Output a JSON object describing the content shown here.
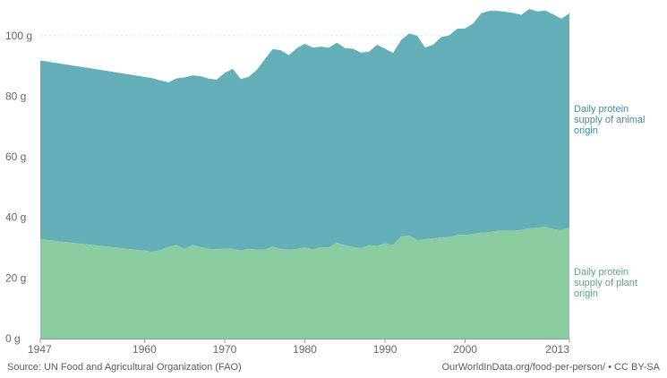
{
  "chart_data": {
    "type": "area",
    "stacked": true,
    "x": [
      1947,
      1961,
      1962,
      1963,
      1964,
      1965,
      1966,
      1967,
      1968,
      1969,
      1970,
      1971,
      1972,
      1973,
      1974,
      1975,
      1976,
      1977,
      1978,
      1979,
      1980,
      1981,
      1982,
      1983,
      1984,
      1985,
      1986,
      1987,
      1988,
      1989,
      1990,
      1991,
      1992,
      1993,
      1994,
      1995,
      1996,
      1997,
      1998,
      1999,
      2000,
      2001,
      2002,
      2003,
      2004,
      2005,
      2006,
      2007,
      2008,
      2009,
      2010,
      2011,
      2012,
      2013
    ],
    "series": [
      {
        "name": "Daily protein supply of plant origin",
        "color": "#8bcba0",
        "values": [
          32.8,
          28.7,
          29.2,
          30.2,
          30.9,
          29.6,
          30.9,
          30.2,
          29.6,
          29.5,
          29.7,
          29.6,
          29.1,
          29.6,
          29.4,
          29.4,
          30.4,
          29.6,
          29.3,
          29.6,
          30.1,
          29.5,
          30.2,
          30.1,
          31.6,
          30.8,
          30.2,
          29.9,
          30.8,
          30.6,
          31.4,
          30.9,
          33.7,
          34.1,
          32.5,
          32.8,
          33.1,
          33.4,
          33.5,
          34.2,
          34.2,
          34.6,
          35.0,
          35.1,
          35.6,
          35.6,
          35.5,
          35.9,
          36.4,
          36.6,
          36.9,
          36.1,
          35.8,
          36.6
        ]
      },
      {
        "name": "Daily protein supply of animal origin",
        "color": "#63aeb7",
        "values": [
          59.0,
          57.3,
          56.0,
          54.4,
          55.0,
          56.6,
          56.0,
          56.4,
          56.2,
          56.0,
          58.0,
          59.5,
          56.6,
          56.8,
          59.3,
          62.8,
          65.2,
          65.6,
          64.3,
          66.3,
          67.2,
          66.5,
          66.2,
          65.9,
          66.1,
          65.1,
          65.5,
          64.5,
          63.9,
          66.4,
          64.3,
          63.4,
          64.9,
          66.6,
          67.5,
          63.3,
          63.9,
          66.1,
          66.6,
          68.1,
          68.2,
          69.4,
          72.4,
          73.1,
          72.6,
          72.3,
          72.0,
          71.0,
          72.4,
          71.4,
          71.4,
          70.9,
          69.8,
          70.8
        ]
      }
    ],
    "ylim": [
      0,
      110
    ],
    "yticks": [
      0,
      20,
      40,
      60,
      80,
      100
    ],
    "ytick_labels": [
      "0 g",
      "20 g",
      "40 g",
      "60 g",
      "80 g",
      "100 g"
    ],
    "xticks": [
      1947,
      1960,
      1970,
      1980,
      1990,
      2000,
      2013
    ],
    "xtick_labels": [
      "1947",
      "1960",
      "1970",
      "1980",
      "1990",
      "2000",
      "2013"
    ],
    "grid": true,
    "legend": "direct labels at right end of each area",
    "labels": {
      "animal": [
        "Daily protein",
        "supply of animal",
        "origin"
      ],
      "plant": [
        "Daily protein",
        "supply of plant",
        "origin"
      ]
    }
  },
  "footer": {
    "source": "Source: UN Food and Agricultural Organization (FAO)",
    "credit": "OurWorldInData.org/food-per-person/ • CC BY-SA"
  }
}
